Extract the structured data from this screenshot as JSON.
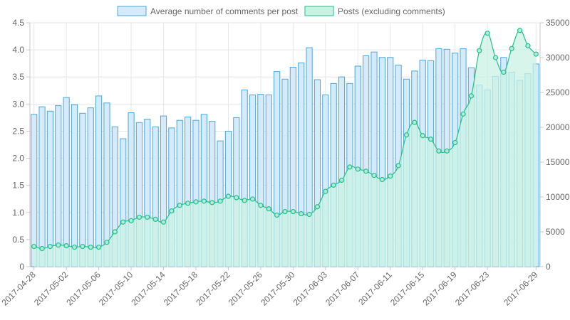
{
  "chart_data": {
    "type": "bar",
    "categories": [
      "2017-04-28",
      "2017-04-29",
      "2017-04-30",
      "2017-05-01",
      "2017-05-02",
      "2017-05-03",
      "2017-05-04",
      "2017-05-05",
      "2017-05-06",
      "2017-05-07",
      "2017-05-08",
      "2017-05-09",
      "2017-05-10",
      "2017-05-11",
      "2017-05-12",
      "2017-05-13",
      "2017-05-14",
      "2017-05-15",
      "2017-05-16",
      "2017-05-17",
      "2017-05-18",
      "2017-05-19",
      "2017-05-20",
      "2017-05-21",
      "2017-05-22",
      "2017-05-23",
      "2017-05-24",
      "2017-05-25",
      "2017-05-26",
      "2017-05-27",
      "2017-05-28",
      "2017-05-29",
      "2017-05-30",
      "2017-05-31",
      "2017-06-01",
      "2017-06-02",
      "2017-06-03",
      "2017-06-04",
      "2017-06-05",
      "2017-06-06",
      "2017-06-07",
      "2017-06-08",
      "2017-06-09",
      "2017-06-10",
      "2017-06-11",
      "2017-06-12",
      "2017-06-13",
      "2017-06-14",
      "2017-06-15",
      "2017-06-16",
      "2017-06-17",
      "2017-06-18",
      "2017-06-19",
      "2017-06-20",
      "2017-06-21",
      "2017-06-22",
      "2017-06-23",
      "2017-06-24",
      "2017-06-25",
      "2017-06-26",
      "2017-06-27",
      "2017-06-28",
      "2017-06-29"
    ],
    "series": [
      {
        "name": "Average number of comments per post",
        "type": "bar",
        "axis": "left",
        "color": "#4aa6e0",
        "fill": "#d6ebf9",
        "values": [
          2.81,
          2.95,
          2.87,
          2.97,
          3.12,
          2.99,
          2.83,
          2.93,
          3.15,
          3.02,
          2.58,
          2.36,
          2.84,
          2.66,
          2.72,
          2.58,
          2.78,
          2.56,
          2.7,
          2.76,
          2.7,
          2.81,
          2.68,
          2.32,
          2.5,
          2.75,
          3.26,
          3.17,
          3.18,
          3.17,
          3.6,
          3.46,
          3.68,
          3.76,
          4.04,
          3.45,
          3.17,
          3.38,
          3.5,
          3.38,
          3.7,
          3.89,
          3.96,
          3.86,
          3.86,
          3.72,
          3.46,
          3.61,
          3.81,
          3.8,
          4.02,
          4.01,
          3.94,
          4.02,
          3.67,
          3.35,
          3.26,
          3.51,
          3.86,
          3.59,
          3.44,
          3.56,
          3.74
        ]
      },
      {
        "name": "Posts (excluding comments)",
        "type": "area",
        "axis": "right",
        "color": "#1ec28b",
        "fill": "#c9f2e3",
        "values": [
          2900,
          2600,
          2900,
          3100,
          3000,
          2800,
          2900,
          2800,
          2800,
          3500,
          5000,
          6400,
          6600,
          7100,
          7100,
          6800,
          6400,
          8000,
          8800,
          9100,
          9300,
          9400,
          9200,
          9400,
          10100,
          9900,
          9500,
          9700,
          8800,
          8300,
          7400,
          7900,
          7900,
          7600,
          7500,
          8600,
          10800,
          11700,
          12400,
          14300,
          14000,
          13700,
          13100,
          12500,
          13000,
          14500,
          18900,
          20700,
          18800,
          18300,
          16600,
          16600,
          17800,
          21900,
          24500,
          31000,
          33500,
          30000,
          27900,
          31300,
          33900,
          31700,
          30500
        ]
      }
    ],
    "y_left": {
      "min": 0,
      "max": 4.5,
      "ticks": [
        "0",
        "0.5",
        "1.0",
        "1.5",
        "2.0",
        "2.5",
        "3.0",
        "3.5",
        "4.0",
        "4.5"
      ]
    },
    "y_right": {
      "min": 0,
      "max": 35000,
      "ticks": [
        "0",
        "5000",
        "10000",
        "15000",
        "20000",
        "25000",
        "30000",
        "35000"
      ]
    },
    "x_ticks": [
      "2017-04-28",
      "2017-05-02",
      "2017-05-06",
      "2017-05-10",
      "2017-05-14",
      "2017-05-18",
      "2017-05-22",
      "2017-05-26",
      "2017-05-30",
      "2017-06-03",
      "2017-06-07",
      "2017-06-11",
      "2017-06-15",
      "2017-06-19",
      "2017-06-23",
      "2017-06-29"
    ],
    "grid": true,
    "legend": "top"
  }
}
